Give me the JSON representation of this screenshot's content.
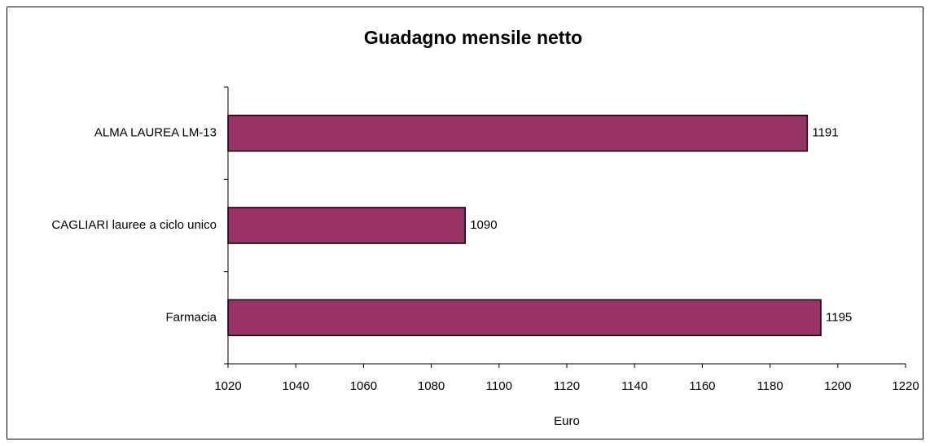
{
  "chart_data": {
    "type": "bar",
    "orientation": "horizontal",
    "title": "Guadagno mensile netto",
    "x_label": "Euro",
    "categories": [
      "ALMA LAUREA LM-13",
      "CAGLIARI lauree a ciclo unico",
      "Farmacia"
    ],
    "values": [
      1191,
      1090,
      1195
    ],
    "color": "#993366",
    "xlim": [
      1020,
      1220
    ],
    "xticks": [
      1020,
      1040,
      1060,
      1080,
      1100,
      1120,
      1140,
      1160,
      1180,
      1200,
      1220
    ],
    "grid": false
  }
}
